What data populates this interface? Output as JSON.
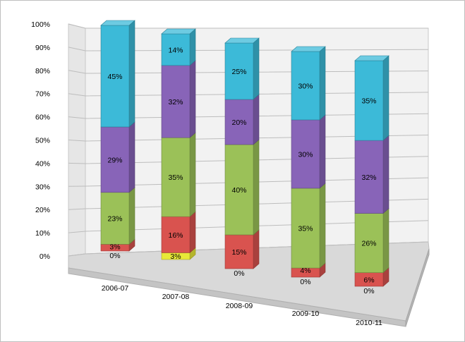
{
  "chart_data": {
    "type": "bar",
    "subtype": "stacked-100-3d",
    "title": "",
    "xlabel": "",
    "ylabel": "",
    "ylim": [
      0,
      100
    ],
    "y_ticks": [
      "0%",
      "10%",
      "20%",
      "30%",
      "40%",
      "50%",
      "60%",
      "70%",
      "80%",
      "90%",
      "100%"
    ],
    "grid": true,
    "legend": "none",
    "categories": [
      "2006-07",
      "2007-08",
      "2008-09",
      "2009-10",
      "2010-11"
    ],
    "series": [
      {
        "color": "#e8e838",
        "values": [
          0,
          3,
          0,
          0,
          0
        ],
        "labels": [
          "0%",
          "3%",
          "0%",
          "0%",
          "0%"
        ]
      },
      {
        "color": "#d9534f",
        "values": [
          3,
          16,
          15,
          4,
          6
        ],
        "labels": [
          "3%",
          "16%",
          "15%",
          "4%",
          "6%"
        ]
      },
      {
        "color": "#9bc158",
        "values": [
          23,
          35,
          40,
          35,
          26
        ],
        "labels": [
          "23%",
          "35%",
          "40%",
          "35%",
          "26%"
        ]
      },
      {
        "color": "#8864b8",
        "values": [
          29,
          32,
          20,
          30,
          32
        ],
        "labels": [
          "29%",
          "32%",
          "20%",
          "30%",
          "32%"
        ]
      },
      {
        "color": "#3cbad8",
        "values": [
          45,
          14,
          25,
          30,
          35
        ],
        "labels": [
          "45%",
          "14%",
          "25%",
          "30%",
          "35%"
        ]
      }
    ]
  }
}
